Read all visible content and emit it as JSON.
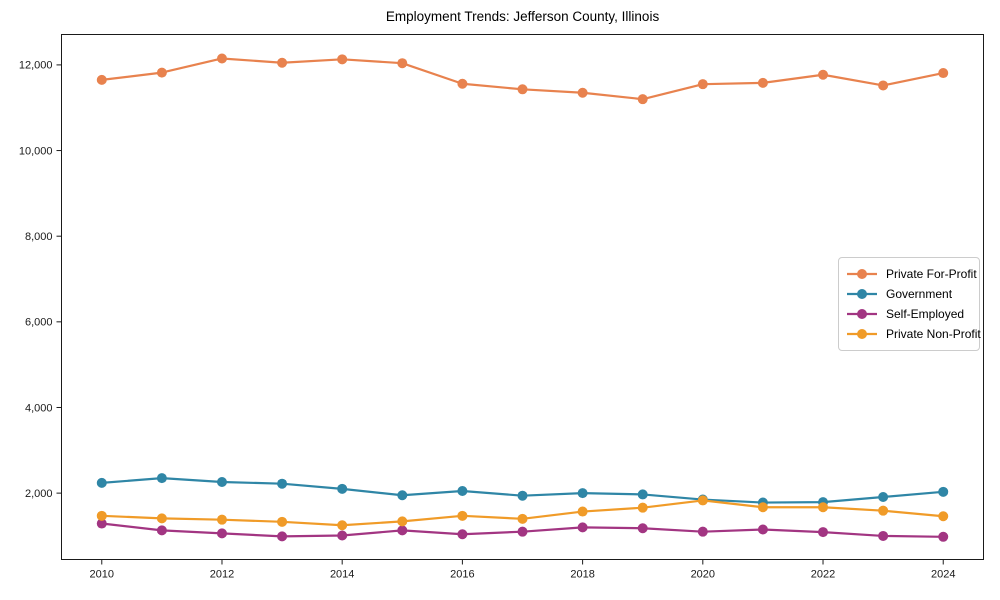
{
  "figure": {
    "title": "Employment Trends: Jefferson County, Illinois"
  },
  "chart_data": {
    "type": "line",
    "title": "Employment Trends: Jefferson County, Illinois",
    "xlabel": "",
    "ylabel": "",
    "grid": false,
    "legend_position": "center-right",
    "xlim": [
      2009.33,
      2024.67
    ],
    "ylim": [
      450,
      12710
    ],
    "x": [
      2010,
      2011,
      2012,
      2013,
      2014,
      2015,
      2016,
      2017,
      2018,
      2019,
      2020,
      2021,
      2022,
      2023,
      2024
    ],
    "series": [
      {
        "name": "Private For-Profit",
        "color": "#e8824e",
        "values": [
          11650,
          11820,
          12150,
          12050,
          12130,
          12040,
          11560,
          11430,
          11350,
          11200,
          11550,
          11580,
          11770,
          11520,
          11810
        ]
      },
      {
        "name": "Government",
        "color": "#2f86a6",
        "values": [
          2240,
          2350,
          2260,
          2220,
          2100,
          1950,
          2050,
          1940,
          2000,
          1970,
          1850,
          1780,
          1790,
          1910,
          2030
        ]
      },
      {
        "name": "Self-Employed",
        "color": "#a23582",
        "values": [
          1290,
          1130,
          1060,
          990,
          1010,
          1130,
          1040,
          1100,
          1200,
          1180,
          1100,
          1150,
          1090,
          1000,
          980
        ]
      },
      {
        "name": "Private Non-Profit",
        "color": "#f09b28",
        "values": [
          1470,
          1410,
          1380,
          1330,
          1250,
          1340,
          1470,
          1400,
          1570,
          1660,
          1830,
          1670,
          1670,
          1590,
          1460
        ]
      }
    ],
    "yticks": {
      "values": [
        2000,
        4000,
        6000,
        8000,
        10000,
        12000
      ],
      "labels": [
        "2,000",
        "4,000",
        "6,000",
        "8,000",
        "10,000",
        "12,000"
      ]
    },
    "xticks": {
      "values": [
        2010,
        2012,
        2014,
        2016,
        2018,
        2020,
        2022,
        2024
      ],
      "labels": [
        "2010",
        "2012",
        "2014",
        "2016",
        "2018",
        "2020",
        "2022",
        "2024"
      ]
    }
  }
}
